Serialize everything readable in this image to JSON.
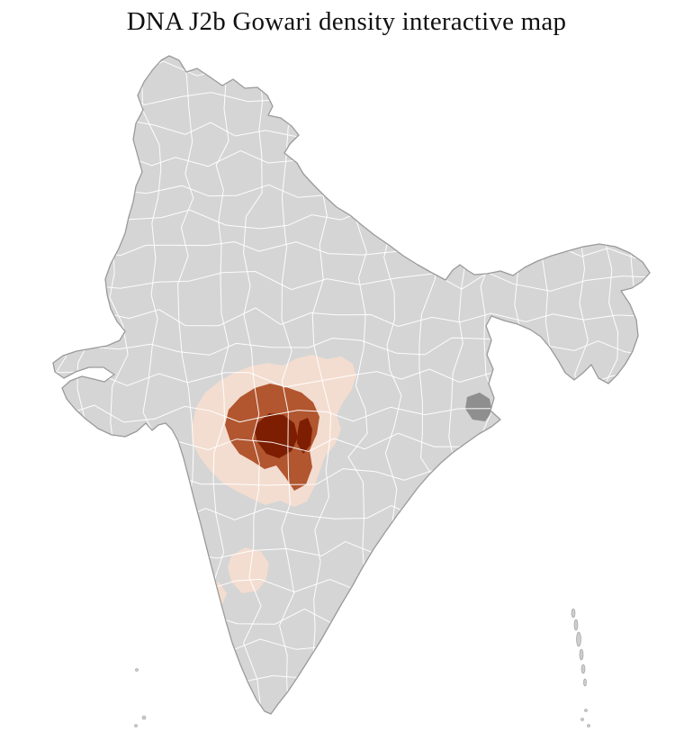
{
  "page": {
    "title": "DNA J2b Gowari density interactive map"
  },
  "map": {
    "base_fill": "#d5d5d5",
    "border_color": "#9a9a9a",
    "district_line_color": "#ffffff",
    "island_fill": "#cdcdcd",
    "no_data_color": "#8f8f8f",
    "density_scale": [
      {
        "level": "low",
        "color": "#f3ddd0"
      },
      {
        "level": "medium",
        "color": "#b1562f"
      },
      {
        "level": "high",
        "color": "#7d1e02"
      }
    ]
  }
}
